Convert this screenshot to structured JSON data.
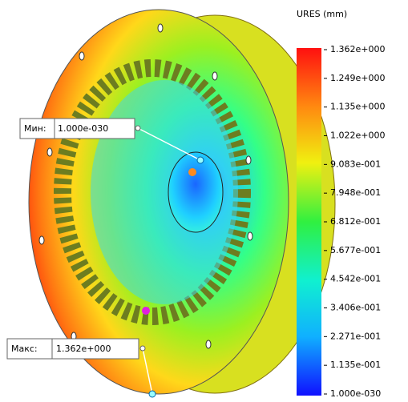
{
  "legend": {
    "title": "URES (mm)",
    "labels": [
      "1.362e+000",
      "1.249e+000",
      "1.135e+000",
      "1.022e+000",
      "9.083e-001",
      "7.948e-001",
      "6.812e-001",
      "5.677e-001",
      "4.542e-001",
      "3.406e-001",
      "2.271e-001",
      "1.135e-001",
      "1.000e-030"
    ]
  },
  "annotations": [
    {
      "label": "Мин:",
      "value": "1.000e-030"
    },
    {
      "label": "Макс:",
      "value": "1.362e+000"
    }
  ]
}
